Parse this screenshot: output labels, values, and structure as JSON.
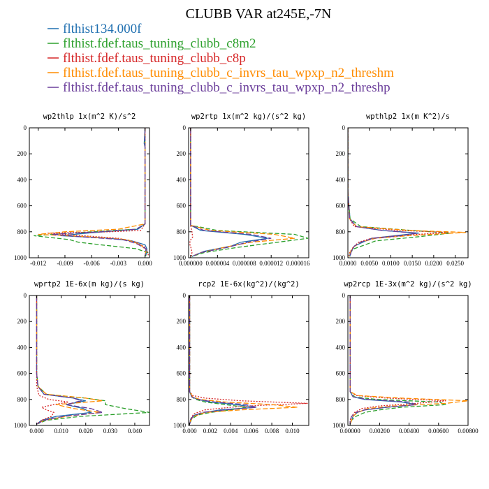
{
  "figure_title": "CLUBB VAR at245E,-7N",
  "legend": [
    {
      "label": "flthist134.000f",
      "color": "#1f6fb0",
      "dash": ""
    },
    {
      "label": "flthist.fdef.taus_tuning_clubb_c8m2",
      "color": "#2ca02c",
      "dash": "6,3"
    },
    {
      "label": "flthist.fdef.taus_tuning_clubb_c8p",
      "color": "#d62728",
      "dash": "2,2"
    },
    {
      "label": "flthist.fdef.taus_tuning_clubb_c_invrs_tau_wpxp_n2_threshm",
      "color": "#ff8c00",
      "dash": "7,3"
    },
    {
      "label": "flthist.fdef.taus_tuning_clubb_c_invrs_tau_wpxp_n2_threshp",
      "color": "#6a3d9a",
      "dash": "8,3"
    }
  ],
  "chart_data": [
    {
      "type": "line",
      "title": "wp2thlp  1x(m^2 K)/s^2",
      "xlim": [
        -0.013,
        0.0005
      ],
      "ylim": [
        1000,
        0
      ],
      "xticks": [
        -0.012,
        -0.009,
        -0.006,
        -0.003,
        0.0
      ],
      "xtick_labels": [
        "-0.012",
        "-0.009",
        "-0.006",
        "-0.003",
        "0.000"
      ],
      "yticks": [
        0,
        200,
        400,
        600,
        800,
        1000
      ],
      "ytick_labels": [
        "0",
        "200",
        "400",
        "600",
        "800",
        "1000"
      ],
      "series": [
        {
          "y": [
            0,
            120,
            150,
            600,
            740,
            780,
            810,
            830,
            850,
            870,
            900,
            930,
            960,
            990
          ],
          "x": [
            0,
            -0.0001,
            0,
            0,
            0,
            -0.0008,
            -0.0065,
            -0.0095,
            -0.004,
            -0.0015,
            0,
            0.0002,
            0.0002,
            0
          ]
        },
        {
          "y": [
            0,
            150,
            600,
            740,
            780,
            800,
            830,
            860,
            880,
            900,
            930,
            960,
            990
          ],
          "x": [
            0,
            0,
            0,
            0,
            -0.001,
            -0.006,
            -0.0125,
            -0.0085,
            -0.0075,
            -0.005,
            -0.001,
            0.0003,
            0
          ]
        },
        {
          "y": [
            0,
            600,
            740,
            790,
            800,
            810,
            830,
            850,
            880,
            920,
            960,
            990
          ],
          "x": [
            0,
            0,
            0,
            -0.0005,
            -0.004,
            -0.011,
            -0.007,
            -0.003,
            -0.001,
            0,
            0.0003,
            0.0004
          ]
        },
        {
          "y": [
            0,
            600,
            740,
            780,
            800,
            820,
            840,
            860,
            900,
            940,
            990
          ],
          "x": [
            0,
            0,
            0,
            -0.003,
            -0.009,
            -0.012,
            -0.006,
            -0.002,
            -0.0005,
            0.0001,
            0
          ]
        },
        {
          "y": [
            0,
            600,
            740,
            780,
            800,
            820,
            840,
            860,
            890,
            930,
            990
          ],
          "x": [
            0,
            0,
            0,
            -0.001,
            -0.005,
            -0.0105,
            -0.007,
            -0.0025,
            -0.001,
            0.0001,
            0
          ]
        }
      ]
    },
    {
      "type": "line",
      "title": "wp2rtp  1x(m^2 kg)/(s^2 kg)",
      "xlim": [
        -3e-07,
        1.76e-05
      ],
      "ylim": [
        1000,
        0
      ],
      "xticks": [
        0.0,
        4e-06,
        8e-06,
        1.2e-05,
        1.6e-05
      ],
      "xtick_labels": [
        "0.000000",
        "0.000004",
        "0.000008",
        "0.000012",
        "0.000016"
      ],
      "yticks": [
        0,
        200,
        400,
        600,
        800,
        1000
      ],
      "ytick_labels": [
        "0",
        "200",
        "400",
        "600",
        "800",
        "1000"
      ],
      "series": [
        {
          "y": [
            0,
            600,
            750,
            790,
            820,
            850,
            880,
            910,
            950,
            990
          ],
          "x": [
            0,
            0,
            0,
            1.5e-06,
            8e-06,
            1.15e-05,
            7.5e-06,
            6e-06,
            2e-06,
            2e-07
          ]
        },
        {
          "y": [
            0,
            600,
            750,
            790,
            820,
            850,
            880,
            920,
            960,
            990
          ],
          "x": [
            0,
            0,
            0,
            4e-06,
            1.55e-05,
            1.75e-05,
            1.3e-05,
            7e-06,
            2e-06,
            2e-07
          ]
        },
        {
          "y": [
            0,
            600,
            750,
            800,
            840,
            870,
            900,
            930,
            960,
            990
          ],
          "x": [
            0,
            0,
            0,
            2e-07,
            3e-07,
            -1e-07,
            -1e-07,
            1e-07,
            2e-07,
            1e-07
          ]
        },
        {
          "y": [
            0,
            600,
            750,
            790,
            820,
            850,
            880,
            920,
            960,
            990
          ],
          "x": [
            0,
            0,
            0,
            3e-06,
            1.25e-05,
            1.55e-05,
            9e-06,
            5e-06,
            1.5e-06,
            2e-07
          ]
        },
        {
          "y": [
            0,
            600,
            750,
            790,
            820,
            850,
            880,
            920,
            960,
            990
          ],
          "x": [
            0,
            0,
            0,
            2e-06,
            9e-06,
            1.2e-05,
            8.5e-06,
            5.5e-06,
            1.5e-06,
            2e-07
          ]
        }
      ]
    },
    {
      "type": "line",
      "title": "wpthlp2  1x(m K^2)/s",
      "xlim": [
        0.0,
        0.028
      ],
      "ylim": [
        1000,
        0
      ],
      "xticks": [
        0.0,
        0.005,
        0.01,
        0.015,
        0.02,
        0.025
      ],
      "xtick_labels": [
        "0.0000",
        "0.0050",
        "0.0100",
        "0.0150",
        "0.0200",
        "0.0250"
      ],
      "yticks": [
        0,
        200,
        400,
        600,
        800,
        1000
      ],
      "ytick_labels": [
        "0",
        "200",
        "400",
        "600",
        "800",
        "1000"
      ],
      "series": [
        {
          "y": [
            0,
            500,
            700,
            760,
            790,
            810,
            830,
            850,
            880,
            910,
            940,
            970,
            990
          ],
          "x": [
            0,
            0,
            0.0005,
            0.002,
            0.008,
            0.0165,
            0.011,
            0.0055,
            0.0035,
            0.0015,
            0.001,
            0.0005,
            0.0005
          ]
        },
        {
          "y": [
            0,
            500,
            700,
            760,
            790,
            810,
            840,
            870,
            900,
            930,
            960,
            990
          ],
          "x": [
            0,
            0,
            0.0005,
            0.003,
            0.015,
            0.024,
            0.016,
            0.0065,
            0.004,
            0.0015,
            0.0005,
            0.0004
          ]
        },
        {
          "y": [
            0,
            500,
            700,
            760,
            790,
            805,
            830,
            850,
            880,
            920,
            960,
            990
          ],
          "x": [
            0,
            0,
            0.0004,
            0.0015,
            0.012,
            0.0235,
            0.0115,
            0.0055,
            0.0025,
            0.0012,
            0.0004,
            0.0002
          ]
        },
        {
          "y": [
            0,
            500,
            700,
            760,
            790,
            805,
            830,
            850,
            880,
            920,
            960,
            990
          ],
          "x": [
            0,
            0,
            0.0004,
            0.002,
            0.0145,
            0.0275,
            0.014,
            0.0065,
            0.003,
            0.0012,
            0.0005,
            0.0003
          ]
        },
        {
          "y": [
            0,
            500,
            700,
            760,
            790,
            810,
            830,
            850,
            880,
            910,
            950,
            990
          ],
          "x": [
            0,
            0,
            0.0004,
            0.002,
            0.008,
            0.016,
            0.0125,
            0.006,
            0.003,
            0.0015,
            0.0008,
            0.0005
          ]
        }
      ]
    },
    {
      "type": "line",
      "title": "wprtp2  1E-6x(m kg)/(s kg)",
      "xlim": [
        -0.003,
        0.046
      ],
      "ylim": [
        1000,
        0
      ],
      "xticks": [
        0.0,
        0.01,
        0.02,
        0.03,
        0.04
      ],
      "xtick_labels": [
        "0.000",
        "0.010",
        "0.020",
        "0.030",
        "0.040"
      ],
      "yticks": [
        0,
        200,
        400,
        600,
        800,
        1000
      ],
      "ytick_labels": [
        "0",
        "200",
        "400",
        "600",
        "800",
        "1000"
      ],
      "series": [
        {
          "y": [
            0,
            600,
            700,
            760,
            790,
            810,
            840,
            870,
            900,
            930,
            960,
            990
          ],
          "x": [
            0,
            0,
            0.0005,
            0.003,
            0.015,
            0.02,
            0.012,
            0.019,
            0.022,
            0.008,
            0.002,
            0
          ]
        },
        {
          "y": [
            0,
            600,
            700,
            760,
            790,
            810,
            840,
            870,
            900,
            930,
            960,
            990
          ],
          "x": [
            0,
            0,
            0.0006,
            0.004,
            0.02,
            0.028,
            0.028,
            0.036,
            0.046,
            0.018,
            0.004,
            0
          ]
        },
        {
          "y": [
            0,
            600,
            700,
            770,
            800,
            820,
            840,
            860,
            880,
            900,
            930,
            960,
            990
          ],
          "x": [
            0,
            0,
            0,
            0.001,
            0.005,
            0.013,
            0.007,
            0.002,
            0.004,
            0.007,
            0.006,
            0.002,
            0
          ]
        },
        {
          "y": [
            0,
            600,
            700,
            760,
            790,
            810,
            840,
            870,
            900,
            930,
            960,
            990
          ],
          "x": [
            0,
            0,
            0.0005,
            0.004,
            0.02,
            0.027,
            0.008,
            0.015,
            0.026,
            0.012,
            0.003,
            0
          ]
        },
        {
          "y": [
            0,
            600,
            700,
            760,
            790,
            810,
            840,
            870,
            900,
            930,
            960,
            990
          ],
          "x": [
            0,
            0,
            0.0005,
            0.003,
            0.015,
            0.018,
            0.012,
            0.022,
            0.027,
            0.011,
            0.003,
            0
          ]
        }
      ]
    },
    {
      "type": "line",
      "title": "rcp2  1E-6x(kg^2)/(kg^2)",
      "xlim": [
        -0.0001,
        0.0116
      ],
      "ylim": [
        1000,
        0
      ],
      "xticks": [
        0.0,
        0.002,
        0.004,
        0.006,
        0.008,
        0.01
      ],
      "xtick_labels": [
        "0.000",
        "0.002",
        "0.004",
        "0.006",
        "0.008",
        "0.010"
      ],
      "yticks": [
        0,
        200,
        400,
        600,
        800,
        1000
      ],
      "ytick_labels": [
        "0",
        "200",
        "400",
        "600",
        "800",
        "1000"
      ],
      "series": [
        {
          "y": [
            0,
            600,
            740,
            780,
            800,
            820,
            840,
            860,
            880,
            900,
            920,
            950,
            990
          ],
          "x": [
            0,
            0,
            0,
            0.0002,
            0.0008,
            0.002,
            0.0045,
            0.0065,
            0.003,
            0.0015,
            0.0005,
            0.0001,
            0
          ]
        },
        {
          "y": [
            0,
            600,
            740,
            780,
            800,
            820,
            840,
            860,
            880,
            900,
            920,
            950,
            990
          ],
          "x": [
            0,
            0,
            0,
            0.0002,
            0.0006,
            0.0015,
            0.0035,
            0.0055,
            0.004,
            0.002,
            0.0008,
            0.0002,
            0
          ]
        },
        {
          "y": [
            0,
            600,
            740,
            770,
            790,
            810,
            830,
            845,
            860,
            880,
            910,
            950,
            990
          ],
          "x": [
            0,
            0,
            0,
            0.0003,
            0.0015,
            0.005,
            0.0115,
            0.007,
            0.004,
            0.0015,
            0.0004,
            0.0001,
            0
          ]
        },
        {
          "y": [
            0,
            600,
            740,
            780,
            800,
            820,
            840,
            860,
            880,
            900,
            930,
            960,
            990
          ],
          "x": [
            0,
            0,
            0,
            0.0003,
            0.001,
            0.0035,
            0.008,
            0.0105,
            0.005,
            0.0015,
            0.0004,
            0.0001,
            0
          ]
        },
        {
          "y": [
            0,
            600,
            740,
            780,
            800,
            820,
            840,
            860,
            880,
            900,
            930,
            960,
            990
          ],
          "x": [
            0,
            0,
            0,
            0.0002,
            0.0008,
            0.0025,
            0.0055,
            0.0065,
            0.0035,
            0.0012,
            0.0003,
            0.0001,
            0
          ]
        }
      ]
    },
    {
      "type": "line",
      "title": "wp2rcp  1E-3x(m^2 kg)/(s^2 kg)",
      "xlim": [
        -0.00015,
        0.008
      ],
      "ylim": [
        1000,
        0
      ],
      "xticks": [
        0.0,
        0.002,
        0.004,
        0.006,
        0.008
      ],
      "xtick_labels": [
        "0.00000",
        "0.00200",
        "0.00400",
        "0.00600",
        "0.00800"
      ],
      "yticks": [
        0,
        200,
        400,
        600,
        800,
        1000
      ],
      "ytick_labels": [
        "0",
        "200",
        "400",
        "600",
        "800",
        "1000"
      ],
      "series": [
        {
          "y": [
            0,
            600,
            740,
            780,
            800,
            820,
            840,
            860,
            880,
            900,
            930,
            960,
            990
          ],
          "x": [
            0,
            0,
            0,
            0.0002,
            0.001,
            0.0035,
            0.0045,
            0.0025,
            0.001,
            0.0005,
            0.0002,
            0.0001,
            0
          ]
        },
        {
          "y": [
            0,
            600,
            740,
            780,
            800,
            820,
            840,
            860,
            880,
            900,
            930,
            960,
            990
          ],
          "x": [
            0,
            0,
            0,
            0.0003,
            0.0018,
            0.006,
            0.0065,
            0.0035,
            0.002,
            0.001,
            0.0004,
            0.0001,
            0
          ]
        },
        {
          "y": [
            0,
            600,
            740,
            770,
            790,
            810,
            830,
            850,
            870,
            900,
            930,
            960,
            990
          ],
          "x": [
            0,
            0,
            0,
            0.0004,
            0.0025,
            0.0065,
            0.0045,
            0.002,
            0.0008,
            0.0003,
            0.0001,
            0,
            0
          ]
        },
        {
          "y": [
            0,
            600,
            740,
            770,
            790,
            810,
            830,
            850,
            870,
            900,
            930,
            960,
            990
          ],
          "x": [
            0,
            0,
            0,
            0.0005,
            0.0035,
            0.008,
            0.0065,
            0.003,
            0.0012,
            0.0005,
            0.0002,
            0.0001,
            0
          ]
        },
        {
          "y": [
            0,
            600,
            740,
            780,
            800,
            820,
            840,
            860,
            880,
            900,
            930,
            960,
            990
          ],
          "x": [
            0,
            0,
            0,
            0.0002,
            0.0012,
            0.004,
            0.0045,
            0.0025,
            0.001,
            0.0004,
            0.0001,
            0,
            0
          ]
        }
      ]
    }
  ]
}
